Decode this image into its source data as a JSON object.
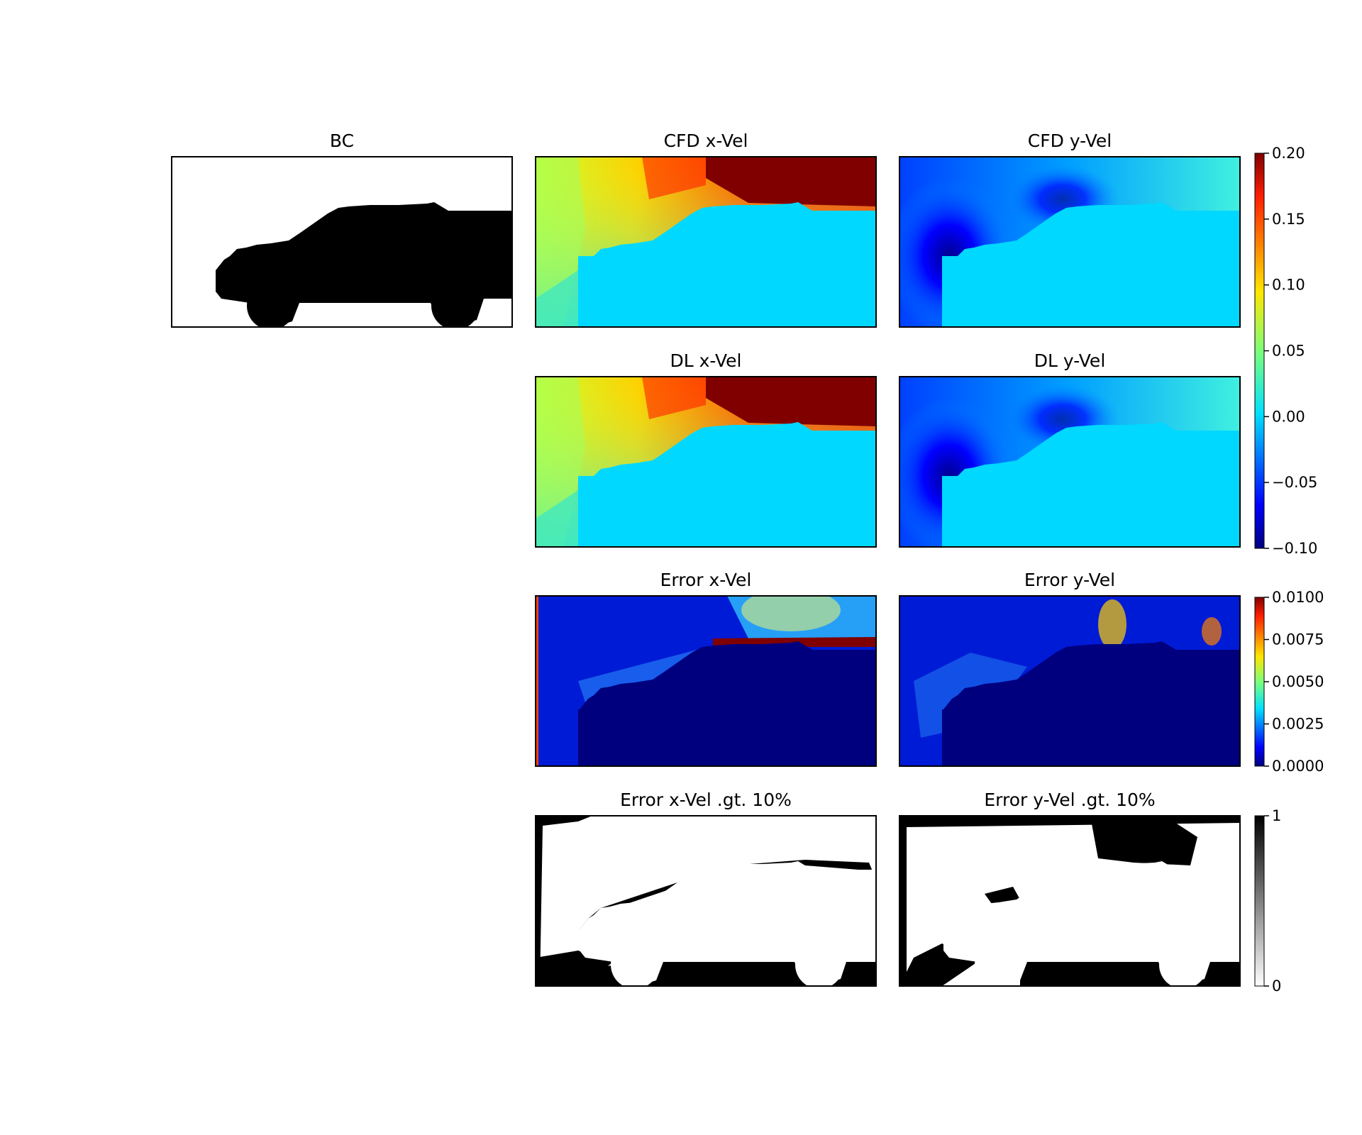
{
  "chart_data": [
    {
      "type": "heatmap",
      "title": "BC",
      "colormap": "binary",
      "content": "car silhouette mask (solid = body), white background"
    },
    {
      "type": "heatmap",
      "title": "CFD x-Vel",
      "colormap": "jet",
      "colorbar": "velocity"
    },
    {
      "type": "heatmap",
      "title": "CFD y-Vel",
      "colormap": "jet",
      "colorbar": "velocity"
    },
    {
      "type": "heatmap",
      "title": "DL x-Vel",
      "colormap": "jet",
      "colorbar": "velocity"
    },
    {
      "type": "heatmap",
      "title": "DL y-Vel",
      "colormap": "jet",
      "colorbar": "velocity"
    },
    {
      "type": "heatmap",
      "title": "Error x-Vel",
      "colormap": "jet",
      "colorbar": "error"
    },
    {
      "type": "heatmap",
      "title": "Error y-Vel",
      "colormap": "jet",
      "colorbar": "error"
    },
    {
      "type": "heatmap",
      "title": "Error x-Vel .gt. 10%",
      "colormap": "gray_r",
      "colorbar": "binary"
    },
    {
      "type": "heatmap",
      "title": "Error y-Vel .gt. 10%",
      "colormap": "gray_r",
      "colorbar": "binary"
    }
  ],
  "colorbars": {
    "velocity": {
      "colormap": "jet",
      "range": [
        -0.1,
        0.2
      ],
      "ticks": [
        "0.20",
        "0.15",
        "0.10",
        "0.05",
        "0.00",
        "−0.05",
        "−0.10"
      ]
    },
    "error": {
      "colormap": "jet",
      "range": [
        0.0,
        0.01
      ],
      "ticks": [
        "0.0100",
        "0.0075",
        "0.0050",
        "0.0025",
        "0.0000"
      ]
    },
    "binary": {
      "colormap": "gray_r",
      "range": [
        0,
        1
      ],
      "ticks": [
        "1",
        "0"
      ]
    }
  },
  "colors": {
    "jet_dark_red": "#800000",
    "jet_red": "#ff0000",
    "jet_yellow": "#ffff00",
    "jet_cyan": "#00e0ff",
    "jet_blue": "#0000ff",
    "jet_dark_blue": "#00007f",
    "mask_black": "#000000"
  }
}
